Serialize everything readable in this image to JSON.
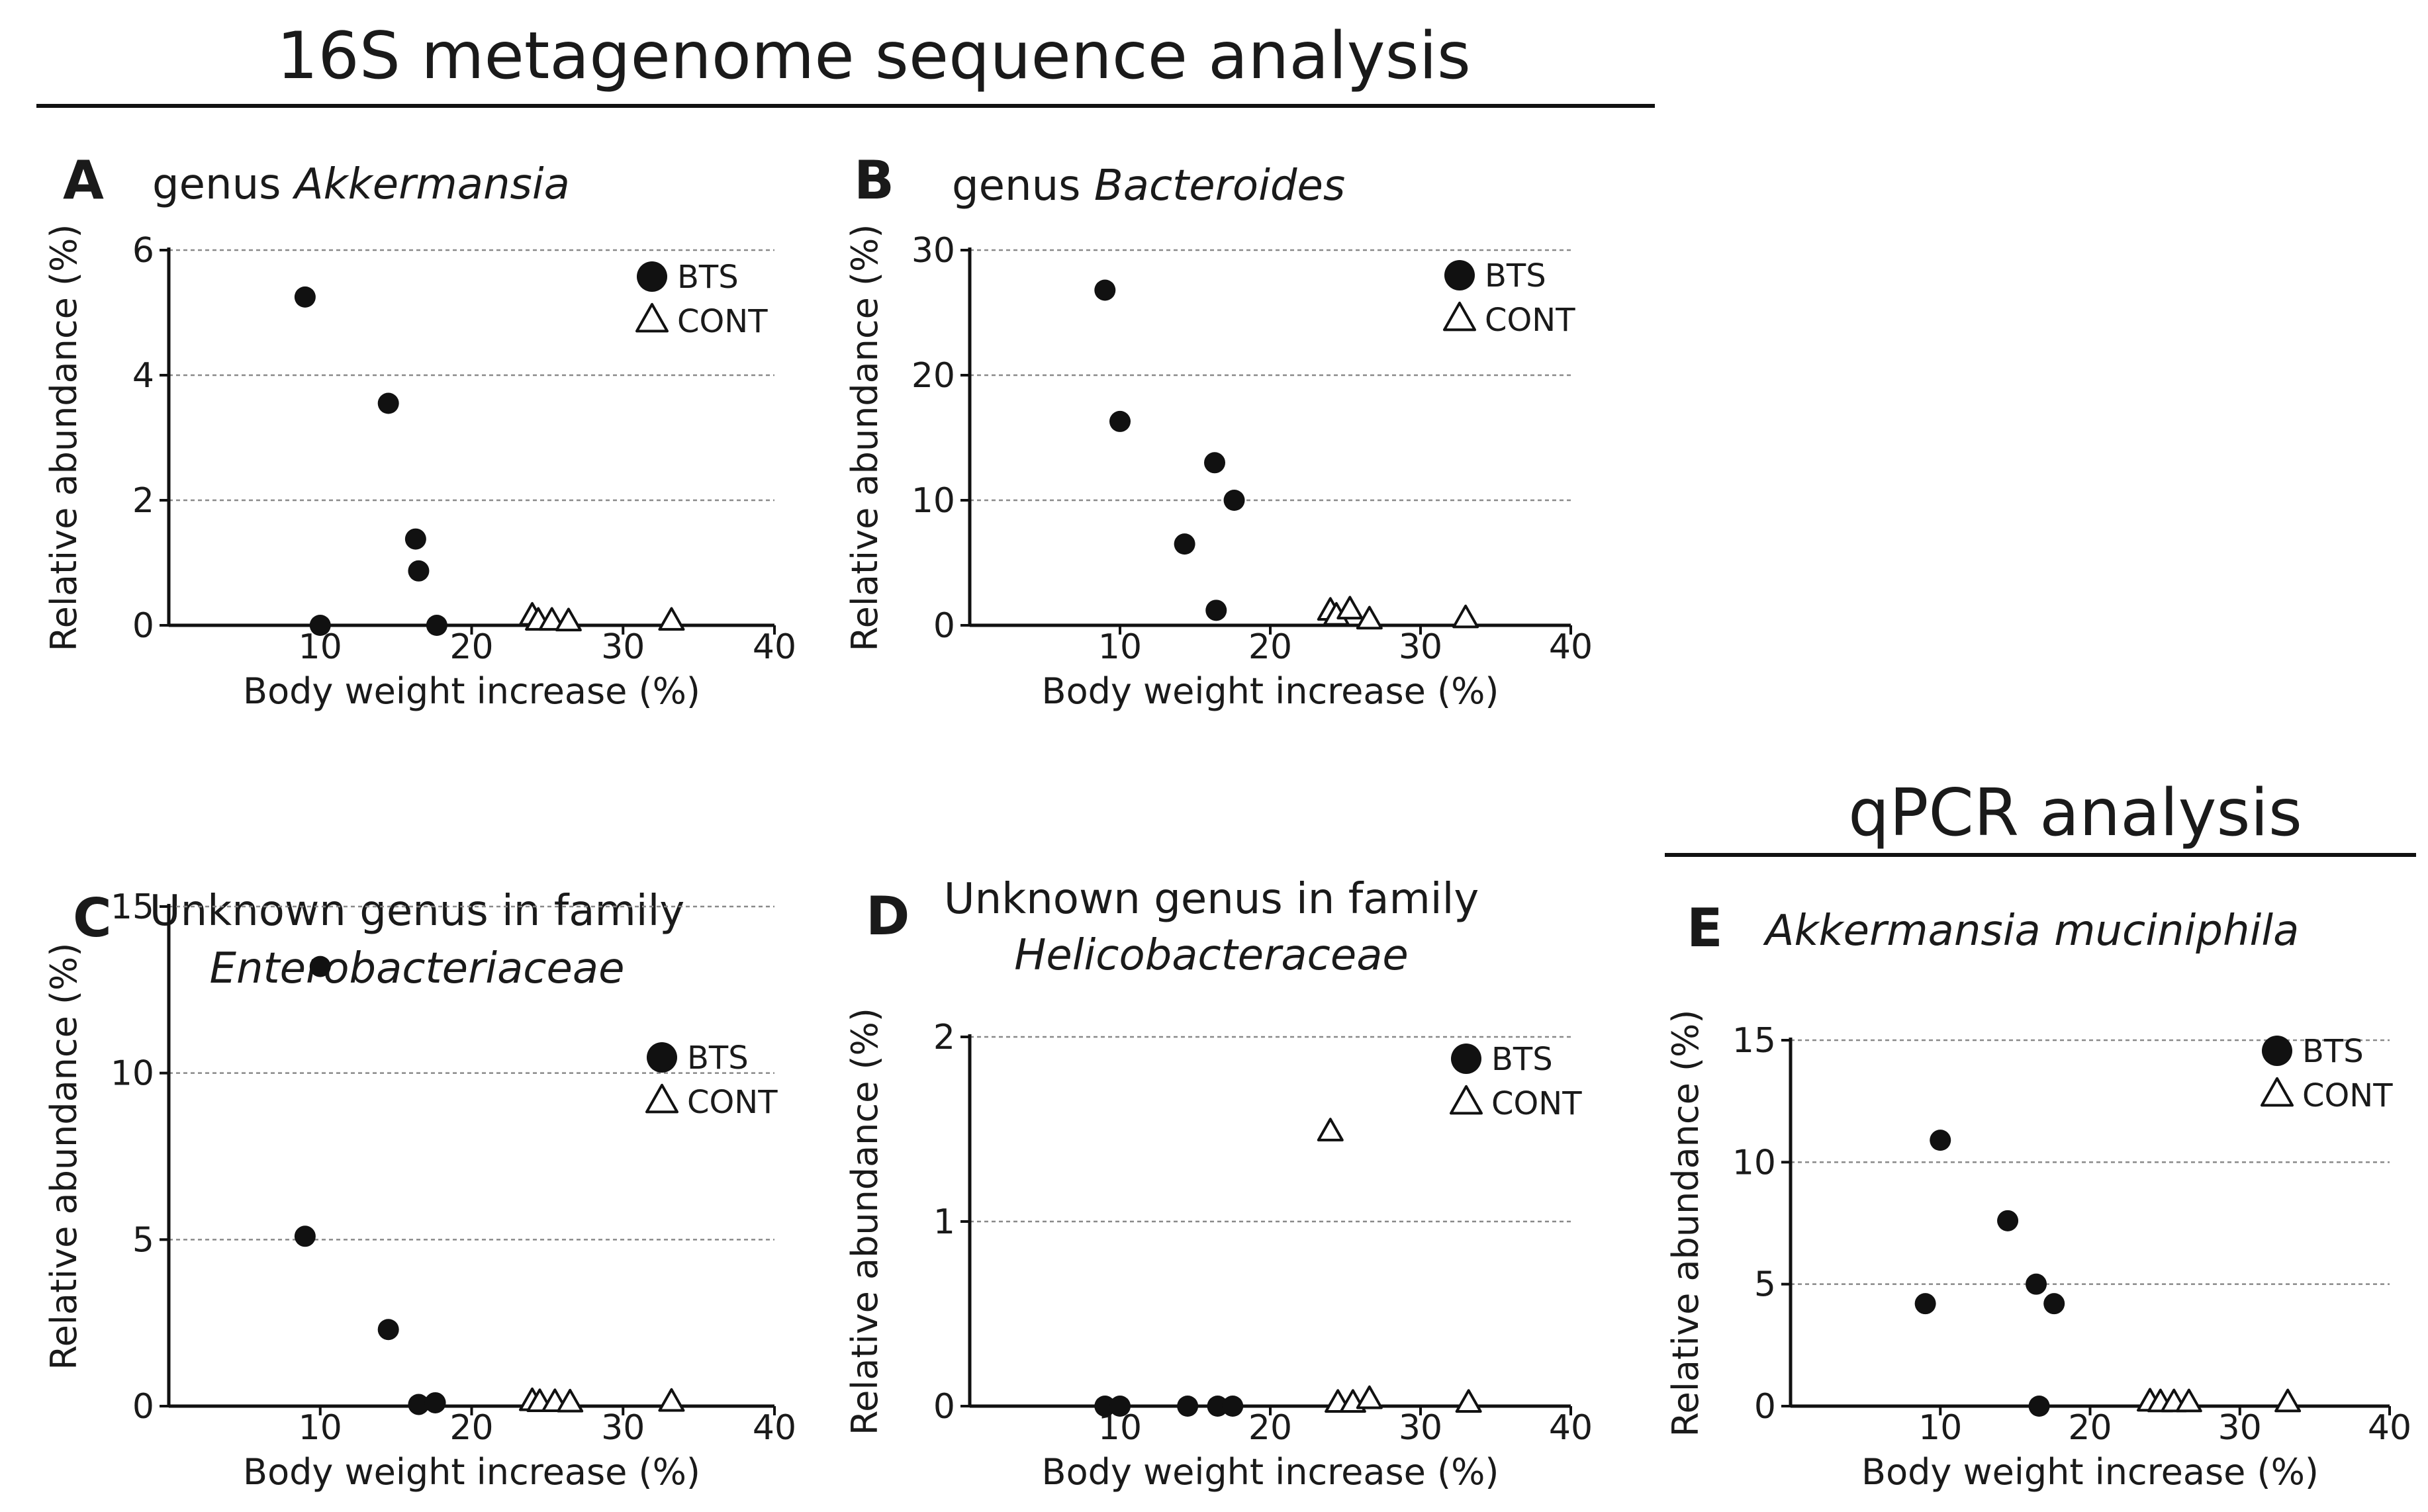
{
  "headers": {
    "metagenome": "16S metagenome sequence analysis",
    "qpcr": "qPCR analysis"
  },
  "chart_data": [
    {
      "panel": "A",
      "type": "scatter",
      "title": "genus",
      "title_italic": "Akkermansia",
      "xlabel": "Body weight increase (%)",
      "ylabel": "Relative abundance (%)",
      "xlim": [
        0,
        40
      ],
      "ylim": [
        0,
        6
      ],
      "xticks": [
        10,
        20,
        30,
        40
      ],
      "yticks": [
        0,
        2,
        4,
        6
      ],
      "grid": true,
      "legend_position": "top-right",
      "series": [
        {
          "name": "BTS",
          "marker": "filled-circle",
          "points": [
            [
              9,
              5.25
            ],
            [
              10,
              0
            ],
            [
              14.5,
              3.55
            ],
            [
              16.3,
              1.38
            ],
            [
              16.5,
              0.87
            ],
            [
              17.7,
              0
            ]
          ]
        },
        {
          "name": "CONT",
          "marker": "open-triangle",
          "points": [
            [
              24,
              0.1
            ],
            [
              24.4,
              0.02
            ],
            [
              25.3,
              0.02
            ],
            [
              26.4,
              0.01
            ],
            [
              33.2,
              0.02
            ]
          ]
        }
      ]
    },
    {
      "panel": "B",
      "type": "scatter",
      "title": "genus",
      "title_italic": "Bacteroides",
      "xlabel": "Body weight increase (%)",
      "ylabel": "Relative abundance (%)",
      "xlim": [
        0,
        40
      ],
      "ylim": [
        0,
        30
      ],
      "xticks": [
        10,
        20,
        30,
        40
      ],
      "yticks": [
        0,
        10,
        20,
        30
      ],
      "grid": true,
      "legend_position": "top-right",
      "series": [
        {
          "name": "BTS",
          "marker": "filled-circle",
          "points": [
            [
              9,
              26.8
            ],
            [
              10,
              16.3
            ],
            [
              14.3,
              6.5
            ],
            [
              16.3,
              13
            ],
            [
              16.4,
              1.2
            ],
            [
              17.6,
              10
            ]
          ]
        },
        {
          "name": "CONT",
          "marker": "open-triangle",
          "points": [
            [
              24,
              0.9
            ],
            [
              24.4,
              0.5
            ],
            [
              25.3,
              1.0
            ],
            [
              26.6,
              0.2
            ],
            [
              33,
              0.3
            ]
          ]
        }
      ]
    },
    {
      "panel": "C",
      "type": "scatter",
      "title": "Unknown genus in family",
      "title_italic": "Enterobacteriaceae",
      "xlabel": "Body weight increase (%)",
      "ylabel": "Relative abundance (%)",
      "xlim": [
        0,
        40
      ],
      "ylim": [
        0,
        15
      ],
      "xticks": [
        10,
        20,
        30,
        40
      ],
      "yticks": [
        0,
        5,
        10,
        15
      ],
      "grid": true,
      "legend_position": "top-right",
      "series": [
        {
          "name": "BTS",
          "marker": "filled-circle",
          "points": [
            [
              9,
              5.1
            ],
            [
              10,
              13.2
            ],
            [
              14.5,
              2.3
            ],
            [
              16.5,
              0.05
            ],
            [
              17.6,
              0.1
            ]
          ]
        },
        {
          "name": "CONT",
          "marker": "open-triangle",
          "points": [
            [
              24,
              0.05
            ],
            [
              24.5,
              0.02
            ],
            [
              25.5,
              0.02
            ],
            [
              26.5,
              0.01
            ],
            [
              33.2,
              0.03
            ]
          ]
        }
      ]
    },
    {
      "panel": "D",
      "type": "scatter",
      "title": "Unknown genus in family",
      "title_italic": "Helicobacteraceae",
      "xlabel": "Body weight increase (%)",
      "ylabel": "Relative abundance (%)",
      "xlim": [
        0,
        40
      ],
      "ylim": [
        0,
        2
      ],
      "xticks": [
        10,
        20,
        30,
        40
      ],
      "yticks": [
        0,
        1,
        2
      ],
      "grid": true,
      "legend_position": "top-right",
      "series": [
        {
          "name": "BTS",
          "marker": "filled-circle",
          "points": [
            [
              9,
              0
            ],
            [
              10,
              0
            ],
            [
              14.5,
              0
            ],
            [
              16.5,
              0
            ],
            [
              17.5,
              0
            ]
          ]
        },
        {
          "name": "CONT",
          "marker": "open-triangle",
          "points": [
            [
              24,
              1.47
            ],
            [
              24.5,
              0
            ],
            [
              25.5,
              0
            ],
            [
              26.6,
              0.02
            ],
            [
              33.2,
              0
            ]
          ]
        }
      ]
    },
    {
      "panel": "E",
      "type": "scatter",
      "title": "",
      "title_italic": "Akkermansia muciniphila",
      "xlabel": "Body weight increase (%)",
      "ylabel": "Relative abundance (%)",
      "xlim": [
        0,
        40
      ],
      "ylim": [
        0,
        15
      ],
      "xticks": [
        10,
        20,
        30,
        40
      ],
      "yticks": [
        0,
        5,
        10,
        15
      ],
      "grid": true,
      "legend_position": "top-right",
      "series": [
        {
          "name": "BTS",
          "marker": "filled-circle",
          "points": [
            [
              9,
              4.2
            ],
            [
              10,
              10.9
            ],
            [
              14.5,
              7.6
            ],
            [
              16.4,
              5
            ],
            [
              16.6,
              0
            ],
            [
              17.6,
              4.2
            ]
          ]
        },
        {
          "name": "CONT",
          "marker": "open-triangle",
          "points": [
            [
              24,
              0.05
            ],
            [
              24.7,
              0.02
            ],
            [
              25.6,
              0.02
            ],
            [
              26.6,
              0.02
            ],
            [
              33.2,
              0.02
            ]
          ]
        }
      ]
    }
  ]
}
